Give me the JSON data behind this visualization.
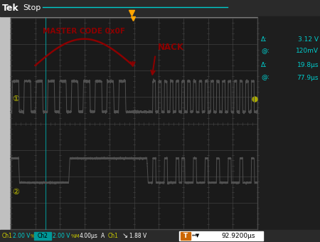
{
  "bg_color": "#1a1a1a",
  "screen_bg": "#1a1a1a",
  "outer_bg": "#3a3a3a",
  "grid_color": "#404040",
  "title_text": "Tek Stop",
  "ch1_color": "#555555",
  "ch2_color": "#555555",
  "annotation_color": "#8b0000",
  "label_color": "#00cccc",
  "readout_color": "#00cccc",
  "bottom_bar_color": "#2a2a2a",
  "bottom_text": "92.9200μs",
  "bottom_icon_color": "#cc6600",
  "status_bar": "Stop",
  "delta_v": "3.12 V",
  "at_v": "120mV",
  "delta_t": "19.8μs",
  "at_t": "77.9μs",
  "ch1_label": "Ch1",
  "ch1_v": "2.00 V",
  "ch2_label": "Ch2",
  "ch2_v": "2.00 V",
  "time_div": "4.00μs",
  "trig_level": "1.88 V",
  "master_code_text": "MASTER CODE 0x0F",
  "nack_text": "NACK"
}
